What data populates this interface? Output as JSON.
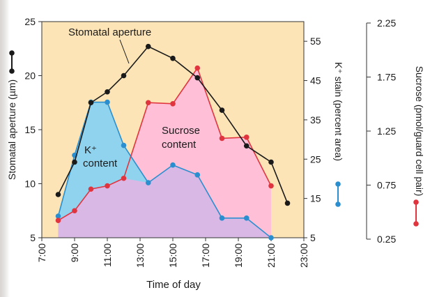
{
  "chart_data": {
    "type": "line",
    "xlabel": "Time of day",
    "x_ticks": [
      "7:00",
      "9:00",
      "11:00",
      "13:00",
      "15:00",
      "17:00",
      "19:00",
      "21:00",
      "23:00"
    ],
    "xlim": [
      7,
      23
    ],
    "axes": {
      "left": {
        "label": "Stomatal aperture (µm)",
        "ylim": [
          5,
          25
        ],
        "ticks": [
          "5",
          "10",
          "15",
          "20",
          "25"
        ]
      },
      "middle": {
        "label": "K⁺ stain (percent area)",
        "ylim": [
          5,
          60
        ],
        "ticks": [
          "5",
          "15",
          "25",
          "35",
          "45",
          "55"
        ]
      },
      "right": {
        "label": "Sucrose (pmol/guard cell pair)",
        "ylim": [
          0.25,
          2.25
        ],
        "ticks": [
          "0.25",
          "0.75",
          "1.25",
          "1.75",
          "2.25"
        ]
      }
    },
    "series": [
      {
        "name": "Stomatal aperture",
        "axis": "left",
        "color": "#1a1a1a",
        "x": [
          8,
          9,
          10,
          11,
          12,
          13.5,
          15,
          16.5,
          18,
          19.5,
          21,
          22
        ],
        "y": [
          9,
          12,
          17.5,
          18.5,
          20,
          22.7,
          21.6,
          19.8,
          16.8,
          13.5,
          12,
          8.2
        ]
      },
      {
        "name": "K⁺ content",
        "axis": "middle",
        "color": "#2b8fcf",
        "fill": "#8fd3ef",
        "x": [
          8,
          9,
          10,
          11,
          12,
          13.5,
          15,
          16.5,
          18,
          19.5,
          21
        ],
        "y": [
          10.5,
          26,
          39.5,
          39.5,
          28.5,
          19,
          23.5,
          21,
          10,
          10,
          5
        ]
      },
      {
        "name": "Sucrose content",
        "axis": "right",
        "color": "#e0353f",
        "fill": "#ffbfd7",
        "x": [
          8,
          9,
          10,
          11,
          12,
          13.5,
          15,
          16.5,
          18,
          19.5,
          21
        ],
        "y": [
          0.41,
          0.5,
          0.7,
          0.73,
          0.8,
          1.5,
          1.49,
          1.82,
          1.17,
          1.18,
          0.73
        ]
      }
    ],
    "annotations": [
      {
        "text": "Stomatal aperture"
      },
      {
        "text": "Sucrose content",
        "lines": [
          "Sucrose",
          "content"
        ]
      },
      {
        "text": "K⁺ content",
        "lines": [
          "K⁺",
          "content"
        ]
      }
    ],
    "grid": false,
    "plot_background": "#fce4b6",
    "overlap_fill": "#d9b8e6"
  }
}
